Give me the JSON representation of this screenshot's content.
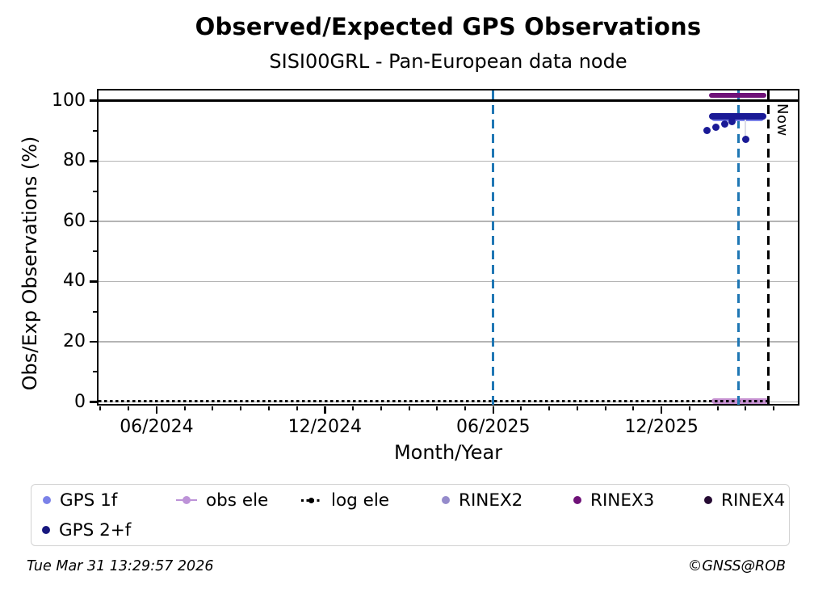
{
  "header": {
    "title": "Observed/Expected GPS Observations",
    "subtitle": "SISI00GRL - Pan-European data node"
  },
  "footer": {
    "timestamp": "Tue Mar 31 13:29:57 2026",
    "copyright": "©GNSS@ROB"
  },
  "chart_data": {
    "type": "scatter",
    "title": "Observed/Expected GPS Observations",
    "subtitle": "SISI00GRL - Pan-European data node",
    "xlabel": "Month/Year",
    "ylabel": "Obs/Exp Observations (%)",
    "x_unit": "months since Jan 2024 (0 = 01/2024)",
    "xlim": [
      2.93,
      27.86
    ],
    "ylim": [
      -0.9,
      103.4
    ],
    "x_ticks": [
      {
        "value": 5,
        "label": "06/2024"
      },
      {
        "value": 11,
        "label": "12/2024"
      },
      {
        "value": 17,
        "label": "06/2025"
      },
      {
        "value": 23,
        "label": "12/2025"
      }
    ],
    "x_minor_tick_months": [
      3,
      4,
      6,
      7,
      8,
      9,
      10,
      12,
      13,
      14,
      15,
      16,
      18,
      19,
      20,
      21,
      22,
      24,
      25,
      26,
      27
    ],
    "y_ticks": [
      {
        "value": 0,
        "label": "0"
      },
      {
        "value": 20,
        "label": "20"
      },
      {
        "value": 40,
        "label": "40"
      },
      {
        "value": 60,
        "label": "60"
      },
      {
        "value": 80,
        "label": "80"
      },
      {
        "value": 100,
        "label": "100"
      }
    ],
    "y_minor_ticks": [
      10,
      30,
      50,
      70,
      90
    ],
    "gridlines_y": [
      0,
      20,
      40,
      60,
      80
    ],
    "top_hline_y": 100,
    "grid": "on",
    "legend_position": "below",
    "vlines": [
      {
        "x": 17.0,
        "color": "#1f77b4",
        "style": "dashed",
        "label": ""
      },
      {
        "x": 25.75,
        "color": "#1f77b4",
        "style": "dashed",
        "label": ""
      },
      {
        "x": 26.8,
        "color": "#000000",
        "style": "dashed",
        "label": "Now"
      }
    ],
    "series": [
      {
        "name": "obs ele",
        "type": "segment",
        "layer": "below",
        "y": 0.4,
        "x": [
          24.77,
          26.82
        ],
        "color": "#c792d2",
        "thickness": 7
      },
      {
        "name": "log ele",
        "type": "dotted-hline",
        "layer": "below",
        "y": 0.3,
        "x": [
          2.93,
          26.8
        ],
        "color": "#000000",
        "thickness": 3.2
      },
      {
        "name": "GPS 1f",
        "type": "segment",
        "layer": "above",
        "y": 94.1,
        "x": [
          24.78,
          26.65
        ],
        "color": "#7b82e8",
        "thickness": 7
      },
      {
        "name": "GPS 2+f",
        "type": "segment",
        "layer": "above",
        "y": 94.7,
        "x": [
          24.7,
          26.73
        ],
        "color": "#1a1a96",
        "thickness": 8
      },
      {
        "name": "RINEX3",
        "type": "segment",
        "layer": "above",
        "y": 101.8,
        "x": [
          24.7,
          26.73
        ],
        "color": "#6f1278",
        "thickness": 6
      },
      {
        "name": "dropline",
        "type": "vsegment",
        "layer": "above",
        "x": 26.0,
        "y": [
          93.8,
          87.6
        ],
        "color": "#dcdce8",
        "thickness": 2
      },
      {
        "name": "GPS 2+f low points",
        "type": "scatter",
        "layer": "above",
        "color": "#1a1a96",
        "size": 9,
        "points": [
          [
            24.62,
            90.0
          ],
          [
            24.93,
            91.2
          ],
          [
            25.25,
            92.3
          ],
          [
            25.5,
            93.0
          ],
          [
            26.0,
            87.3
          ]
        ]
      }
    ]
  },
  "legend": {
    "items": [
      {
        "label": "GPS 1f",
        "color": "#7b82e8",
        "marker": "dot"
      },
      {
        "label": "obs ele",
        "color": "#bd93d8",
        "marker": "line-dot"
      },
      {
        "label": "log ele",
        "color": "#000000",
        "marker": "dotted-dot"
      },
      {
        "label": "RINEX2",
        "color": "#958bcb",
        "marker": "dot"
      },
      {
        "label": "RINEX3",
        "color": "#6f1278",
        "marker": "dot"
      },
      {
        "label": "RINEX4",
        "color": "#260b33",
        "marker": "dot"
      },
      {
        "label": "GPS 2+f",
        "color": "#17177e",
        "marker": "dot"
      }
    ]
  }
}
